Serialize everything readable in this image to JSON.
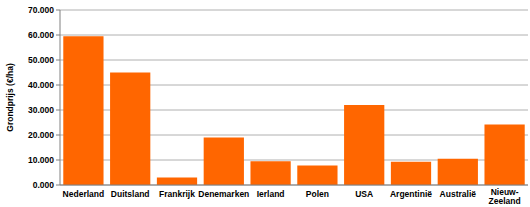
{
  "chart_data": {
    "type": "bar",
    "y_label": "Grondprijs (€/ha)",
    "categories": [
      "Nederland",
      "Duitsland",
      "Frankrijk",
      "Denemarken",
      "Ierland",
      "Polen",
      "USA",
      "Argentinië",
      "Australië",
      "Nieuw-Zeeland"
    ],
    "values": [
      59500,
      45000,
      3000,
      19000,
      9500,
      7800,
      32000,
      9300,
      10500,
      24200
    ],
    "color": "#ff6600",
    "ylim": [
      0,
      70000
    ],
    "yticks": [
      {
        "value": 0,
        "label": "0.000"
      },
      {
        "value": 10000,
        "label": "10.000"
      },
      {
        "value": 20000,
        "label": "20.000"
      },
      {
        "value": 30000,
        "label": "30.000"
      },
      {
        "value": 40000,
        "label": "40.000"
      },
      {
        "value": 50000,
        "label": "50.000"
      },
      {
        "value": 60000,
        "label": "60.000"
      },
      {
        "value": 70000,
        "label": "70.000"
      }
    ],
    "grid": true
  }
}
